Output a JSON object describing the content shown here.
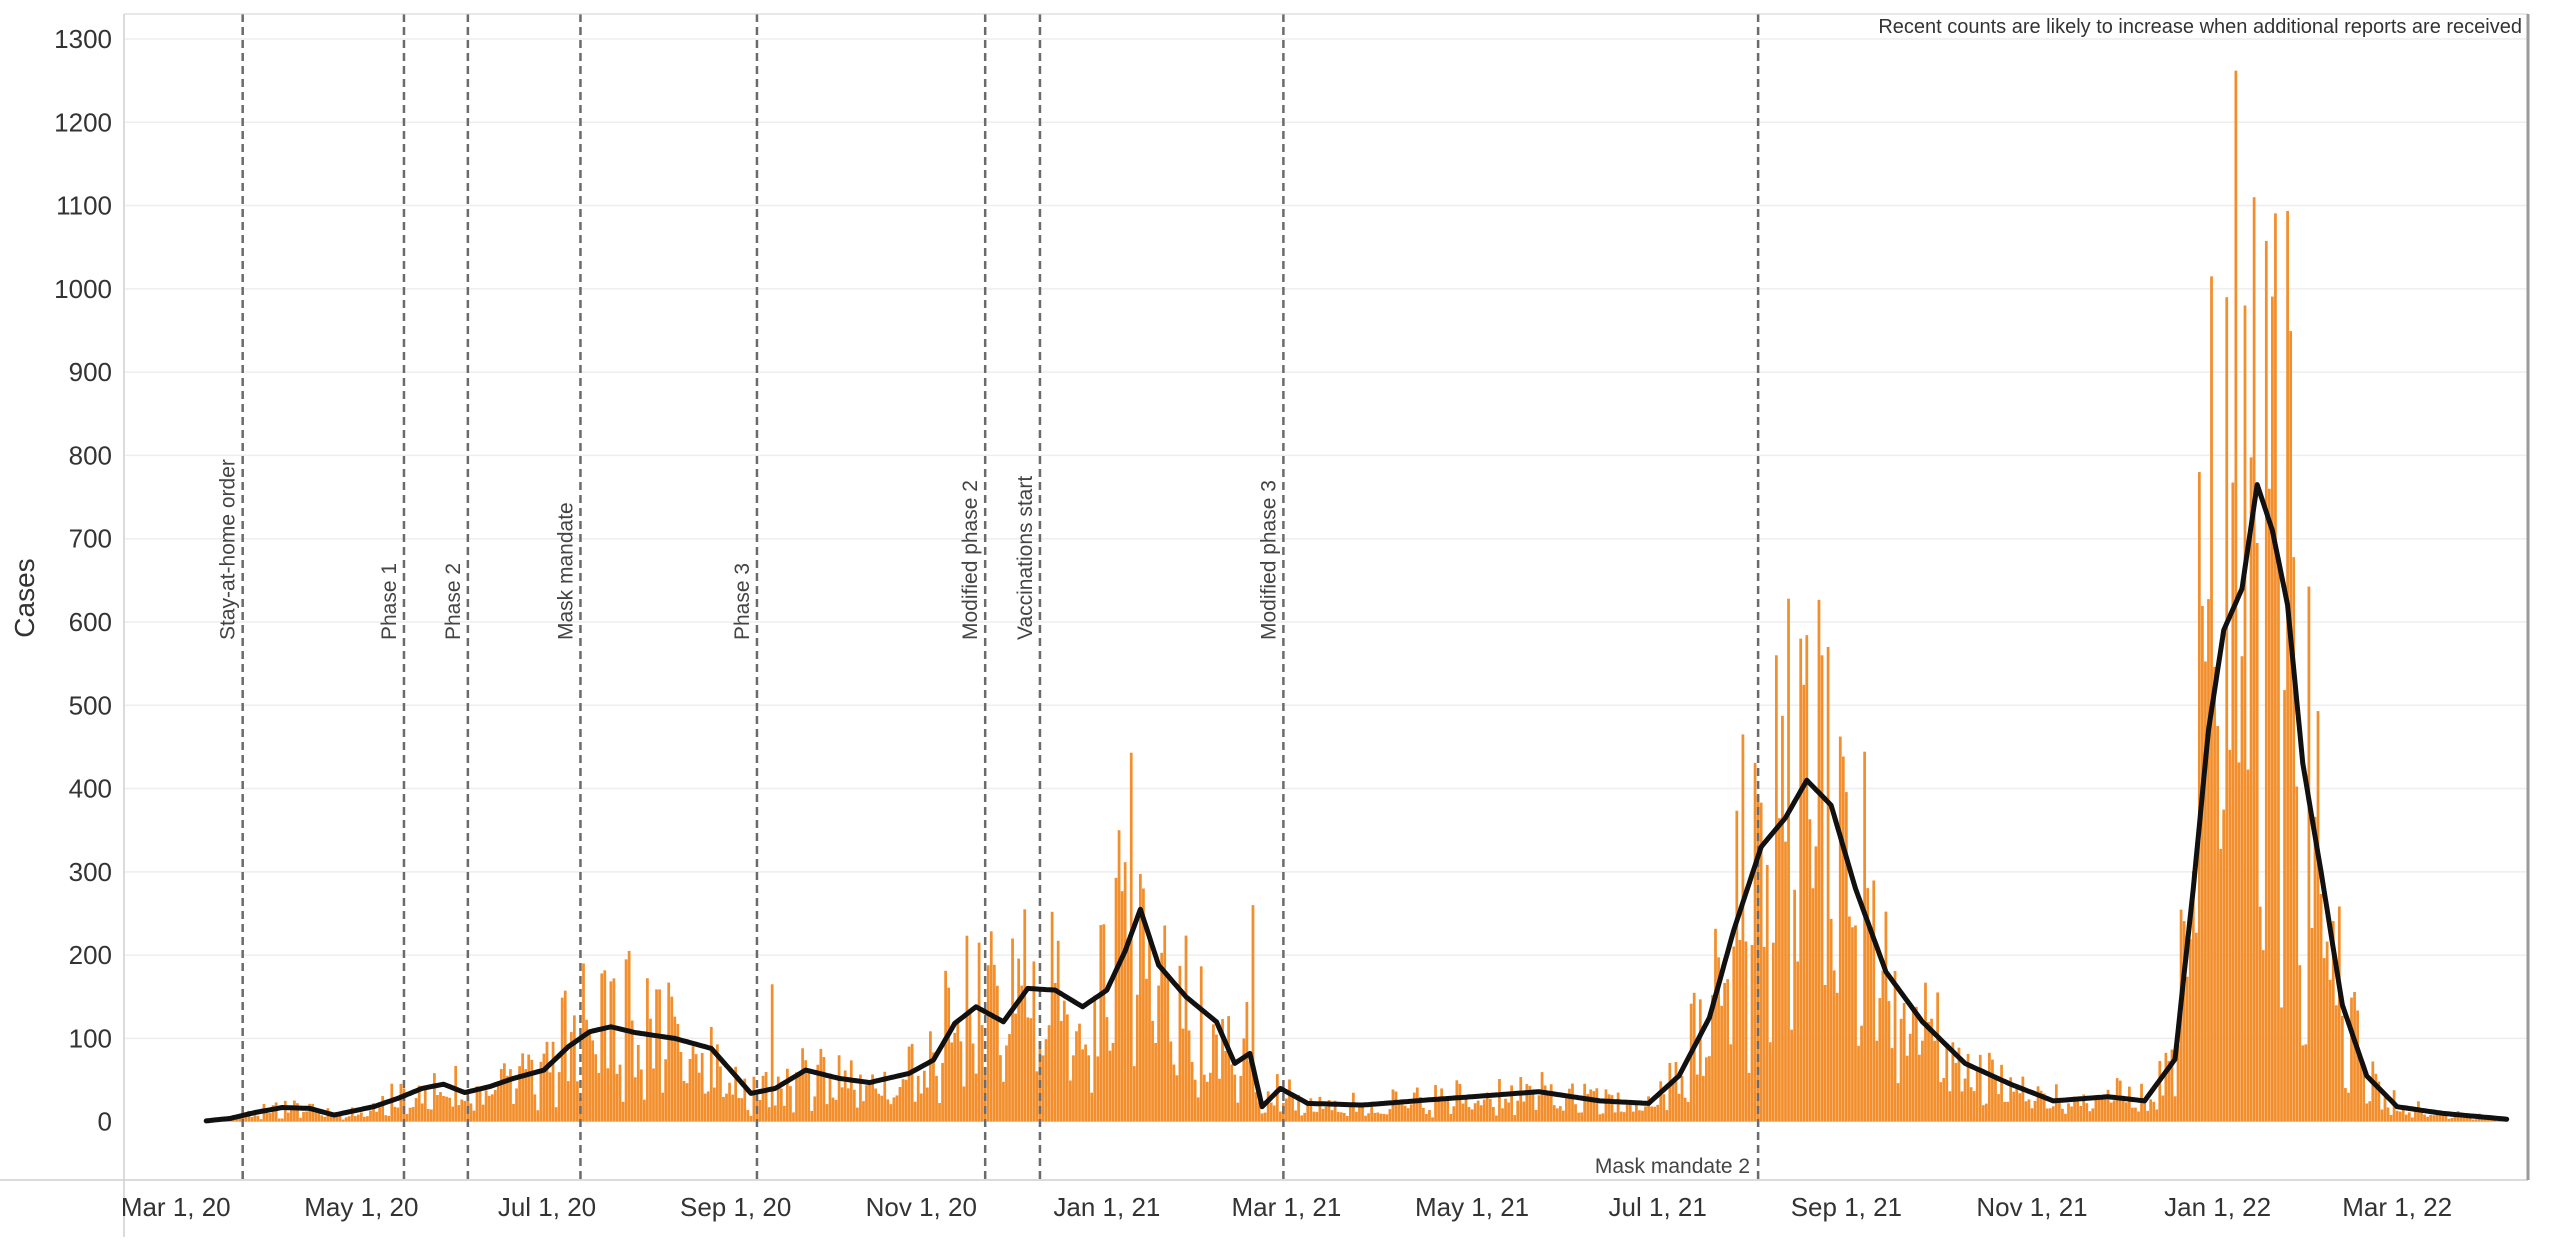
{
  "note": "Recent counts are likely to increase when additional reports are received",
  "chart_data": {
    "type": "bar",
    "ylabel": "Cases",
    "xlabel": "",
    "title": "",
    "ylim": [
      -70,
      1330
    ],
    "yticks": [
      0,
      100,
      200,
      300,
      400,
      500,
      600,
      700,
      800,
      900,
      1000,
      1100,
      1200,
      1300
    ],
    "xlim": [
      "2020-02-13",
      "2022-04-13"
    ],
    "x_ticks": [
      {
        "date": "2020-03-01",
        "label": "Mar 1, 20"
      },
      {
        "date": "2020-05-01",
        "label": "May 1, 20"
      },
      {
        "date": "2020-07-01",
        "label": "Jul 1, 20"
      },
      {
        "date": "2020-09-01",
        "label": "Sep 1, 20"
      },
      {
        "date": "2020-11-01",
        "label": "Nov 1, 20"
      },
      {
        "date": "2021-01-01",
        "label": "Jan 1, 21"
      },
      {
        "date": "2021-03-01",
        "label": "Mar 1, 21"
      },
      {
        "date": "2021-05-01",
        "label": "May 1, 21"
      },
      {
        "date": "2021-07-01",
        "label": "Jul 1, 21"
      },
      {
        "date": "2021-09-01",
        "label": "Sep 1, 21"
      },
      {
        "date": "2021-11-01",
        "label": "Nov 1, 21"
      },
      {
        "date": "2022-01-01",
        "label": "Jan 1, 22"
      },
      {
        "date": "2022-03-01",
        "label": "Mar 1, 22"
      }
    ],
    "grid": true,
    "bar_color": "#f28e2b",
    "line_color": "#111111",
    "events": [
      {
        "date": "2020-03-23",
        "label": "Stay-at-home order",
        "position": "top"
      },
      {
        "date": "2020-05-15",
        "label": "Phase 1",
        "position": "top"
      },
      {
        "date": "2020-06-05",
        "label": "Phase 2",
        "position": "top"
      },
      {
        "date": "2020-07-12",
        "label": "Mask mandate",
        "position": "top"
      },
      {
        "date": "2020-09-08",
        "label": "Phase 3",
        "position": "top"
      },
      {
        "date": "2020-11-22",
        "label": "Modified phase 2",
        "position": "top"
      },
      {
        "date": "2020-12-10",
        "label": "Vaccinations start",
        "position": "top"
      },
      {
        "date": "2021-02-28",
        "label": "Modified phase 3",
        "position": "top"
      },
      {
        "date": "2021-08-03",
        "label": "Mask mandate 2",
        "position": "bottom"
      }
    ],
    "moving_average_knots": [
      [
        "2020-03-11",
        1
      ],
      [
        "2020-03-19",
        4
      ],
      [
        "2020-03-27",
        11
      ],
      [
        "2020-04-05",
        17
      ],
      [
        "2020-04-14",
        16
      ],
      [
        "2020-04-22",
        8
      ],
      [
        "2020-05-05",
        18
      ],
      [
        "2020-05-13",
        28
      ],
      [
        "2020-05-21",
        40
      ],
      [
        "2020-05-28",
        45
      ],
      [
        "2020-06-04",
        35
      ],
      [
        "2020-06-12",
        42
      ],
      [
        "2020-06-20",
        52
      ],
      [
        "2020-06-30",
        62
      ],
      [
        "2020-07-08",
        90
      ],
      [
        "2020-07-15",
        108
      ],
      [
        "2020-07-22",
        114
      ],
      [
        "2020-07-30",
        107
      ],
      [
        "2020-08-12",
        100
      ],
      [
        "2020-08-24",
        88
      ],
      [
        "2020-09-01",
        55
      ],
      [
        "2020-09-06",
        34
      ],
      [
        "2020-09-14",
        40
      ],
      [
        "2020-09-24",
        62
      ],
      [
        "2020-10-05",
        52
      ],
      [
        "2020-10-15",
        47
      ],
      [
        "2020-10-28",
        58
      ],
      [
        "2020-11-05",
        74
      ],
      [
        "2020-11-12",
        118
      ],
      [
        "2020-11-19",
        138
      ],
      [
        "2020-11-28",
        120
      ],
      [
        "2020-12-06",
        160
      ],
      [
        "2020-12-15",
        158
      ],
      [
        "2020-12-24",
        138
      ],
      [
        "2021-01-01",
        158
      ],
      [
        "2021-01-07",
        205
      ],
      [
        "2021-01-12",
        255
      ],
      [
        "2021-01-18",
        188
      ],
      [
        "2021-01-27",
        150
      ],
      [
        "2021-02-06",
        120
      ],
      [
        "2021-02-12",
        70
      ],
      [
        "2021-02-17",
        82
      ],
      [
        "2021-02-21",
        18
      ],
      [
        "2021-02-27",
        40
      ],
      [
        "2021-03-08",
        22
      ],
      [
        "2021-03-26",
        20
      ],
      [
        "2021-04-16",
        26
      ],
      [
        "2021-05-01",
        30
      ],
      [
        "2021-05-23",
        36
      ],
      [
        "2021-06-12",
        25
      ],
      [
        "2021-06-28",
        22
      ],
      [
        "2021-07-08",
        55
      ],
      [
        "2021-07-18",
        125
      ],
      [
        "2021-07-26",
        230
      ],
      [
        "2021-08-04",
        330
      ],
      [
        "2021-08-12",
        365
      ],
      [
        "2021-08-19",
        410
      ],
      [
        "2021-08-27",
        380
      ],
      [
        "2021-09-04",
        280
      ],
      [
        "2021-09-14",
        180
      ],
      [
        "2021-09-26",
        120
      ],
      [
        "2021-10-10",
        70
      ],
      [
        "2021-10-25",
        45
      ],
      [
        "2021-11-08",
        25
      ],
      [
        "2021-11-26",
        30
      ],
      [
        "2021-12-08",
        25
      ],
      [
        "2021-12-18",
        75
      ],
      [
        "2021-12-24",
        280
      ],
      [
        "2021-12-29",
        470
      ],
      [
        "2022-01-03",
        590
      ],
      [
        "2022-01-09",
        640
      ],
      [
        "2022-01-14",
        765
      ],
      [
        "2022-01-19",
        710
      ],
      [
        "2022-01-24",
        620
      ],
      [
        "2022-01-29",
        430
      ],
      [
        "2022-02-04",
        300
      ],
      [
        "2022-02-11",
        140
      ],
      [
        "2022-02-19",
        55
      ],
      [
        "2022-03-01",
        18
      ],
      [
        "2022-03-16",
        10
      ],
      [
        "2022-04-06",
        3
      ]
    ],
    "daily_peaks": [
      [
        "2020-07-13",
        190
      ],
      [
        "2020-07-19",
        178
      ],
      [
        "2020-07-28",
        205
      ],
      [
        "2020-09-13",
        165
      ],
      [
        "2020-11-20",
        215
      ],
      [
        "2020-12-05",
        255
      ],
      [
        "2020-12-14",
        252
      ],
      [
        "2021-01-05",
        350
      ],
      [
        "2021-01-09",
        443
      ],
      [
        "2021-01-13",
        280
      ],
      [
        "2021-02-18",
        260
      ],
      [
        "2021-07-29",
        465
      ],
      [
        "2021-08-09",
        560
      ],
      [
        "2021-08-13",
        628
      ],
      [
        "2021-08-17",
        580
      ],
      [
        "2021-08-24",
        560
      ],
      [
        "2021-08-26",
        570
      ],
      [
        "2021-12-26",
        780
      ],
      [
        "2021-12-30",
        1015
      ],
      [
        "2022-01-04",
        990
      ],
      [
        "2022-01-07",
        1262
      ],
      [
        "2022-01-10",
        980
      ],
      [
        "2022-01-13",
        1110
      ],
      [
        "2022-01-18",
        760
      ],
      [
        "2022-02-03",
        493
      ]
    ]
  }
}
